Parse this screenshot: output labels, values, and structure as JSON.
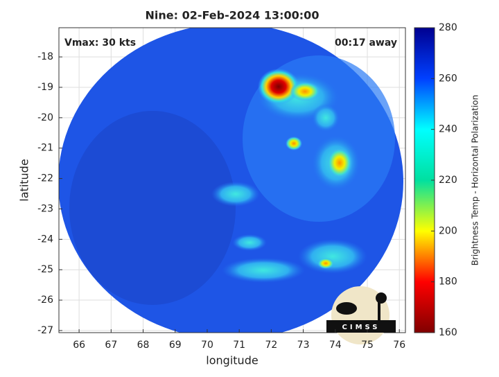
{
  "chart_data": {
    "type": "image",
    "title": "Nine: 02-Feb-2024 13:00:00",
    "annotations": [
      "Vmax: 30 kts",
      "00:17 away"
    ],
    "xlabel": "longitude",
    "ylabel": "latitude",
    "xlim": [
      65.37,
      76.19
    ],
    "xticks": [
      66,
      67,
      68,
      69,
      70,
      71,
      72,
      73,
      74,
      75,
      76
    ],
    "ylim": [
      -27.07,
      -17.04
    ],
    "yticks": [
      -18,
      -19,
      -20,
      -21,
      -22,
      -23,
      -24,
      -25,
      -26,
      -27
    ],
    "grid": true,
    "colorbar": {
      "label": "Brightness Temp - Horizontal Polarization",
      "lim": [
        160,
        280
      ],
      "ticks": [
        160,
        180,
        200,
        220,
        240,
        260,
        280
      ],
      "colormap": "jet"
    }
  },
  "logo": "CIMSS"
}
